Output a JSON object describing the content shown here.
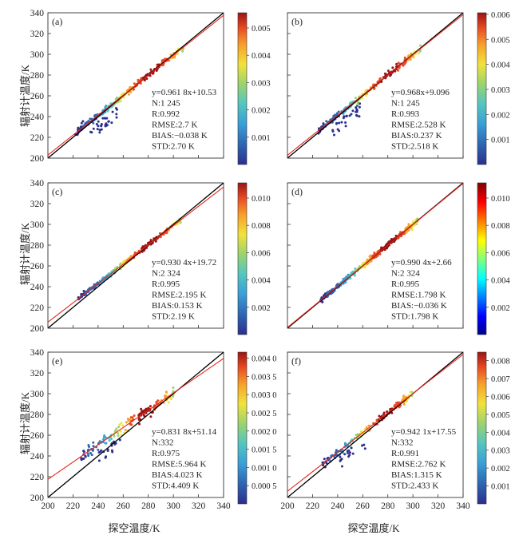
{
  "figure": {
    "ylabel": "辐射计温度/K",
    "xlabel": "探空温度/K"
  },
  "chart_data": [
    {
      "id": "a",
      "panel_label": "(a)",
      "type": "scatter",
      "xlim": [
        200,
        340
      ],
      "ylim": [
        200,
        340
      ],
      "xticks": [
        200,
        220,
        240,
        260,
        280,
        300,
        320,
        340
      ],
      "yticks": [
        200,
        220,
        240,
        260,
        280,
        300,
        320,
        340
      ],
      "fit": {
        "slope": 0.9618,
        "intercept": 10.53
      },
      "points": {
        "x_range": [
          222,
          308
        ],
        "n": 260,
        "seed": 11,
        "spread": 3.2,
        "tail": true
      },
      "stats": [
        "y=0.961 8x+10.53",
        "N:1 245",
        "R:0.992",
        "RMSE:2.7 K",
        "BIAS:−0.038 K",
        "STD:2.70 K"
      ],
      "colorbar": {
        "ticks": [
          "0.001",
          "0.002",
          "0.003",
          "0.004",
          "0.005"
        ],
        "positions": [
          0.18,
          0.36,
          0.54,
          0.72,
          0.9
        ]
      }
    },
    {
      "id": "b",
      "panel_label": "(b)",
      "type": "scatter",
      "xlim": [
        200,
        340
      ],
      "ylim": [
        200,
        340
      ],
      "xticks": [
        200,
        220,
        240,
        260,
        280,
        300,
        320,
        340
      ],
      "yticks": [
        200,
        220,
        240,
        260,
        280,
        300,
        320,
        340
      ],
      "fit": {
        "slope": 0.968,
        "intercept": 9.096
      },
      "points": {
        "x_range": [
          224,
          306
        ],
        "n": 240,
        "seed": 23,
        "spread": 2.8,
        "tail": true
      },
      "stats": [
        "y=0.968x+9.096",
        "N:1 245",
        "R:0.993",
        "RMSE:2.528 K",
        "BIAS:0.237 K",
        "STD:2.518 K"
      ],
      "colorbar": {
        "ticks": [
          "0.001",
          "0.002",
          "0.003",
          "0.004",
          "0.005",
          "0.006"
        ],
        "positions": [
          0.165,
          0.33,
          0.495,
          0.66,
          0.825,
          0.99
        ]
      }
    },
    {
      "id": "c",
      "panel_label": "(c)",
      "type": "scatter",
      "xlim": [
        200,
        340
      ],
      "ylim": [
        200,
        340
      ],
      "xticks": [
        200,
        220,
        240,
        260,
        280,
        300,
        320,
        340
      ],
      "yticks": [
        200,
        220,
        240,
        260,
        280,
        300,
        320,
        340
      ],
      "fit": {
        "slope": 0.9304,
        "intercept": 19.72
      },
      "points": {
        "x_range": [
          224,
          306
        ],
        "n": 320,
        "seed": 37,
        "spread": 2.2,
        "tail": false
      },
      "stats": [
        "y=0.930 4x+19.72",
        "N:2 324",
        "R:0.995",
        "RMSE:2.195 K",
        "BIAS:0.153 K",
        "STD:2.19 K"
      ],
      "colorbar": {
        "ticks": [
          "0.002",
          "0.004",
          "0.006",
          "0.008",
          "0.010"
        ],
        "positions": [
          0.18,
          0.36,
          0.54,
          0.72,
          0.9
        ]
      }
    },
    {
      "id": "d",
      "panel_label": "(d)",
      "type": "scatter",
      "xlim": [
        200,
        340
      ],
      "ylim": [
        200,
        340
      ],
      "xticks": [
        200,
        220,
        240,
        260,
        280,
        300,
        320,
        340
      ],
      "yticks": [
        200,
        220,
        240,
        260,
        280,
        300,
        320,
        340
      ],
      "fit": {
        "slope": 0.9904,
        "intercept": 2.66
      },
      "points": {
        "x_range": [
          226,
          304
        ],
        "n": 420,
        "seed": 41,
        "spread": 2.6,
        "tail": false
      },
      "stats": [
        "y=0.990 4x+2.66",
        "N:2 324",
        "R:0.995",
        "RMSE:1.798 K",
        "BIAS:−0.036 K",
        "STD:1.798 K"
      ],
      "colorbar": {
        "ticks": [
          "0.002",
          "0.004",
          "0.006",
          "0.008",
          "0.010"
        ],
        "positions": [
          0.18,
          0.36,
          0.54,
          0.72,
          0.9
        ]
      }
    },
    {
      "id": "e",
      "panel_label": "(e)",
      "type": "scatter",
      "xlim": [
        200,
        340
      ],
      "ylim": [
        200,
        340
      ],
      "xticks": [
        200,
        220,
        240,
        260,
        280,
        300,
        320,
        340
      ],
      "yticks": [
        200,
        220,
        240,
        260,
        280,
        300,
        320,
        340
      ],
      "fit": {
        "slope": 0.8318,
        "intercept": 51.14
      },
      "points": {
        "x_range": [
          226,
          300
        ],
        "n": 160,
        "seed": 53,
        "spread": 5.5,
        "tail": true
      },
      "stats": [
        "y=0.831 8x+51.14",
        "N:332",
        "R:0.975",
        "RMSE:5.964 K",
        "BIAS:4.023 K",
        "STD:4.409 K"
      ],
      "colorbar": {
        "ticks": [
          "0.000 5",
          "0.001 0",
          "0.001 5",
          "0.002 0",
          "0.002 5",
          "0.003 0",
          "0.003 5",
          "0.004 0"
        ],
        "positions": [
          0.12,
          0.24,
          0.36,
          0.48,
          0.6,
          0.72,
          0.84,
          0.96
        ]
      }
    },
    {
      "id": "f",
      "panel_label": "(f)",
      "type": "scatter",
      "xlim": [
        200,
        340
      ],
      "ylim": [
        200,
        340
      ],
      "xticks": [
        200,
        220,
        240,
        260,
        280,
        300,
        320,
        340
      ],
      "yticks": [
        200,
        220,
        240,
        260,
        280,
        300,
        320,
        340
      ],
      "fit": {
        "slope": 0.9421,
        "intercept": 17.55
      },
      "points": {
        "x_range": [
          228,
          300
        ],
        "n": 150,
        "seed": 67,
        "spread": 3.5,
        "tail": true
      },
      "stats": [
        "y=0.942 1x+17.55",
        "N:332",
        "R:0.991",
        "RMSE:2.762 K",
        "BIAS:1.315 K",
        "STD:2.433 K"
      ],
      "colorbar": {
        "ticks": [
          "0.001",
          "0.002",
          "0.003",
          "0.004",
          "0.005",
          "0.006",
          "0.007",
          "0.008"
        ],
        "positions": [
          0.118,
          0.236,
          0.354,
          0.472,
          0.59,
          0.708,
          0.826,
          0.944
        ]
      }
    }
  ],
  "colors": {
    "identity_line": "#000000",
    "fit_line": "#e8261f",
    "colormap": [
      "#2b2f8e",
      "#2e64b3",
      "#3aa0d6",
      "#54c6c0",
      "#9bd36e",
      "#f1e33b",
      "#f7a02a",
      "#e84a23",
      "#9b1414"
    ]
  }
}
